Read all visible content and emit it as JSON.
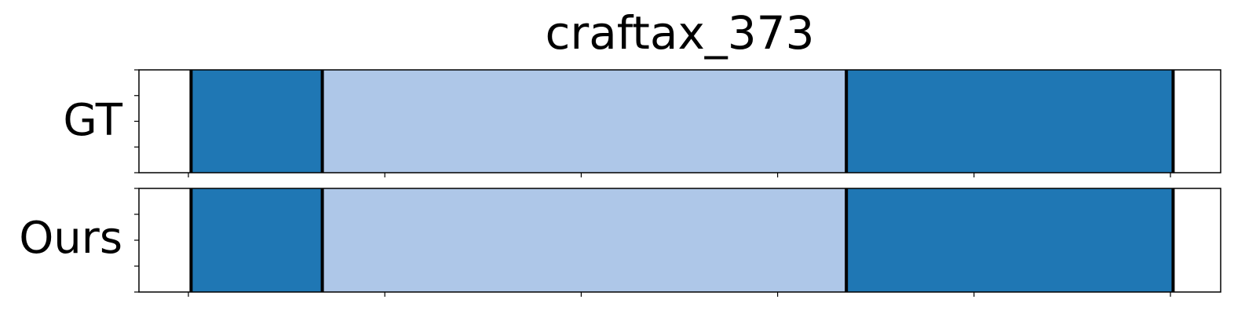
{
  "chart_data": {
    "type": "bar",
    "title": "craftax_373",
    "xlim": [
      0,
      110
    ],
    "x_ticks": [
      5,
      27,
      49,
      71,
      93,
      115
    ],
    "rows": [
      {
        "label": "GT",
        "segments": [
          {
            "start": 5.3,
            "end": 20.0,
            "color": "#1f77b4"
          },
          {
            "start": 20.0,
            "end": 78.7,
            "color": "#aec7e8"
          },
          {
            "start": 78.7,
            "end": 115.3,
            "color": "#1f77b4"
          }
        ],
        "boundaries": [
          5.3,
          20.0,
          78.7,
          115.3
        ]
      },
      {
        "label": "Ours",
        "segments": [
          {
            "start": 5.3,
            "end": 20.0,
            "color": "#1f77b4"
          },
          {
            "start": 20.0,
            "end": 78.7,
            "color": "#aec7e8"
          },
          {
            "start": 78.7,
            "end": 115.3,
            "color": "#1f77b4"
          }
        ],
        "boundaries": [
          5.3,
          20.0,
          78.7,
          115.3
        ]
      }
    ],
    "grid": false,
    "tick_labels_shown": false
  }
}
